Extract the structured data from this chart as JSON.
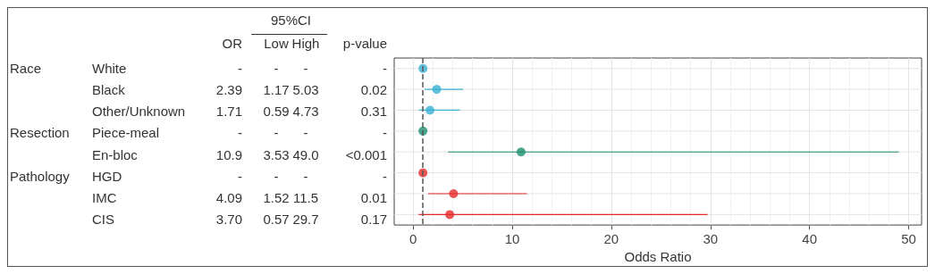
{
  "chart_data": [
    {
      "type": "other",
      "title": "95%CI",
      "categories": [
        "OR",
        "Low",
        "High",
        "p-value"
      ],
      "y_categories": [
        "White",
        "Black",
        "Other/Unknown",
        "Piece-meal",
        "En-bloc",
        "HGD",
        "IMC",
        "CIS"
      ],
      "y2_categories": [
        "Race",
        null,
        null,
        "Resection",
        null,
        "Pathology",
        null,
        null
      ],
      "cell_labels": [
        [
          "-",
          "-",
          "-",
          "-"
        ],
        [
          "2.39",
          "1.17",
          "5.03",
          "0.02"
        ],
        [
          "1.71",
          "0.59",
          "4.73",
          "0.31"
        ],
        [
          "-",
          "-",
          "-",
          "-"
        ],
        [
          "10.9",
          "3.53",
          "49.0",
          "<0.001"
        ],
        [
          "-",
          "-",
          "-",
          "-"
        ],
        [
          "4.09",
          "1.52",
          "11.5",
          "0.01"
        ],
        [
          "3.70",
          "0.57",
          "29.7",
          "0.17"
        ]
      ]
    },
    {
      "type": "scatter",
      "orientation": "horizontal",
      "xlabel": "Odds Ratio",
      "categories": [
        null,
        null,
        null,
        null,
        null,
        null,
        null,
        null
      ],
      "xlim": [
        -1.9,
        51.3
      ],
      "xticks": [
        0,
        10,
        20,
        30,
        40,
        50
      ],
      "grid": true,
      "tick_labels": "x",
      "marker": "circle",
      "ref_lines": [
        {
          "axis": "x",
          "value": 1,
          "line_style": "dashed",
          "color": "#555555"
        }
      ],
      "series": [
        {
          "color": "#3ab0d2",
          "values": [
            1,
            2.39,
            1.71,
            null,
            null,
            null,
            null,
            null
          ],
          "errors": [
            null,
            [
              1.17,
              5.03
            ],
            [
              0.59,
              4.73
            ],
            null,
            null,
            null,
            null,
            null
          ]
        },
        {
          "color": "#1a8f6f",
          "values": [
            null,
            null,
            null,
            1,
            10.9,
            null,
            null,
            null
          ],
          "errors": [
            null,
            null,
            null,
            null,
            [
              3.53,
              49.0
            ],
            null,
            null,
            null
          ]
        },
        {
          "color": "#e52b2b",
          "values": [
            null,
            null,
            null,
            null,
            null,
            1,
            4.09,
            3.7
          ],
          "errors": [
            null,
            null,
            null,
            null,
            null,
            null,
            [
              1.52,
              11.5
            ],
            [
              0.57,
              29.7
            ]
          ]
        }
      ]
    }
  ]
}
